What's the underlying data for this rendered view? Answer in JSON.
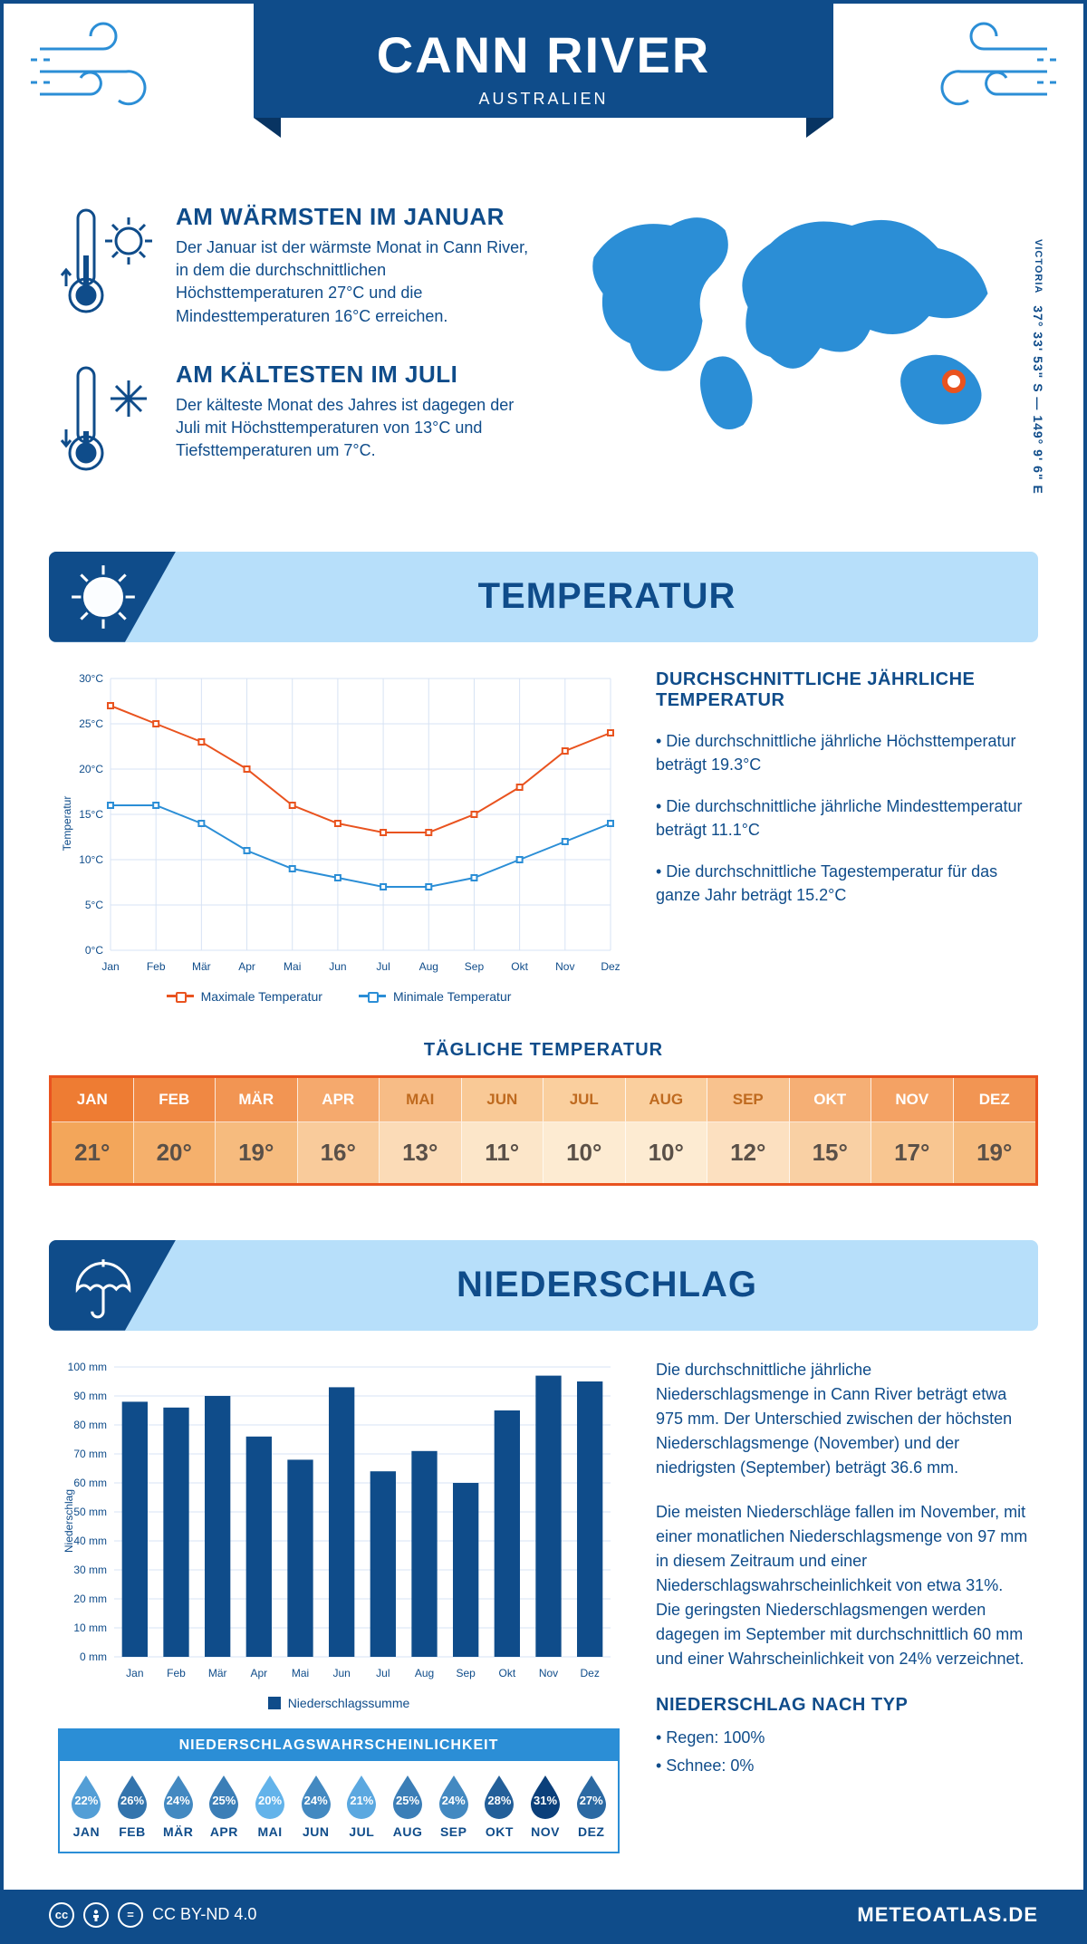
{
  "header": {
    "title": "CANN RIVER",
    "subtitle": "AUSTRALIEN"
  },
  "summary": {
    "warm": {
      "heading": "AM WÄRMSTEN IM JANUAR",
      "text": "Der Januar ist der wärmste Monat in Cann River, in dem die durchschnittlichen Höchsttemperaturen 27°C und die Mindesttemperaturen 16°C erreichen."
    },
    "cold": {
      "heading": "AM KÄLTESTEN IM JULI",
      "text": "Der kälteste Monat des Jahres ist dagegen der Juli mit Höchsttemperaturen von 13°C und Tiefsttemperaturen um 7°C."
    },
    "coords_line": "37° 33' 53\" S — 149° 9' 6\" E",
    "region": "VICTORIA"
  },
  "months": [
    "Jan",
    "Feb",
    "Mär",
    "Apr",
    "Mai",
    "Jun",
    "Jul",
    "Aug",
    "Sep",
    "Okt",
    "Nov",
    "Dez"
  ],
  "months_upper": [
    "JAN",
    "FEB",
    "MÄR",
    "APR",
    "MAI",
    "JUN",
    "JUL",
    "AUG",
    "SEP",
    "OKT",
    "NOV",
    "DEZ"
  ],
  "temperature": {
    "section_title": "TEMPERATUR",
    "chart": {
      "type": "line",
      "ylabel": "Temperatur",
      "ylim": [
        0,
        30
      ],
      "ytick_step": 5,
      "ytick_labels": [
        "0°C",
        "5°C",
        "10°C",
        "15°C",
        "20°C",
        "25°C",
        "30°C"
      ],
      "grid_color": "#d7e3f4",
      "background_color": "#ffffff",
      "series": [
        {
          "name": "Maximale Temperatur",
          "color": "#e9531f",
          "values": [
            27,
            25,
            23,
            20,
            16,
            14,
            13,
            13,
            15,
            18,
            22,
            24
          ]
        },
        {
          "name": "Minimale Temperatur",
          "color": "#2b8ed6",
          "values": [
            16,
            16,
            14,
            11,
            9,
            8,
            7,
            7,
            8,
            10,
            12,
            14
          ]
        }
      ],
      "line_width": 2,
      "marker": "square",
      "marker_size": 6,
      "label_fontsize": 12,
      "legend_fontsize": 13
    },
    "info_heading": "DURCHSCHNITTLICHE JÄHRLICHE TEMPERATUR",
    "info_points": [
      "• Die durchschnittliche jährliche Höchsttemperatur beträgt 19.3°C",
      "• Die durchschnittliche jährliche Mindesttemperatur beträgt 11.1°C",
      "• Die durchschnittliche Tagestemperatur für das ganze Jahr beträgt 15.2°C"
    ],
    "daily_title": "TÄGLICHE TEMPERATUR",
    "daily": {
      "values": [
        "21°",
        "20°",
        "19°",
        "16°",
        "13°",
        "11°",
        "10°",
        "10°",
        "12°",
        "15°",
        "17°",
        "19°"
      ],
      "header_bg_start": "#ee7c33",
      "header_bg_end": "#fbd5a6",
      "row_bg_start": "#fef0db",
      "row_bg_end": "#f3a65a",
      "border_color": "#e9531f",
      "header_text_color": "#ffffff",
      "value_text_color": "#5a5048",
      "intensity": [
        1.0,
        0.86,
        0.72,
        0.5,
        0.28,
        0.14,
        0.07,
        0.07,
        0.21,
        0.43,
        0.57,
        0.72
      ]
    }
  },
  "precip": {
    "section_title": "NIEDERSCHLAG",
    "chart": {
      "type": "bar",
      "ylabel": "Niederschlag",
      "ylim": [
        0,
        100
      ],
      "ytick_step": 10,
      "ytick_suffix": " mm",
      "bar_color": "#0f4c8a",
      "grid_color": "#d7e3f4",
      "values": [
        88,
        86,
        90,
        76,
        68,
        93,
        64,
        71,
        60,
        85,
        97,
        95
      ],
      "legend_label": "Niederschlagssumme",
      "bar_width": 0.62
    },
    "text1": "Die durchschnittliche jährliche Niederschlagsmenge in Cann River beträgt etwa 975 mm. Der Unterschied zwischen der höchsten Niederschlagsmenge (November) und der niedrigsten (September) beträgt 36.6 mm.",
    "text2": "Die meisten Niederschläge fallen im November, mit einer monatlichen Niederschlagsmenge von 97 mm in diesem Zeitraum und einer Niederschlagswahrscheinlichkeit von etwa 31%. Die geringsten Niederschlagsmengen werden dagegen im September mit durchschnittlich 60 mm und einer Wahrscheinlichkeit von 24% verzeichnet.",
    "by_type_heading": "NIEDERSCHLAG NACH TYP",
    "by_type": [
      "• Regen: 100%",
      "• Schnee: 0%"
    ],
    "prob": {
      "title": "NIEDERSCHLAGSWAHRSCHEINLICHKEIT",
      "values": [
        22,
        26,
        24,
        25,
        20,
        24,
        21,
        25,
        24,
        28,
        31,
        27
      ],
      "color_min": "#63b3ea",
      "color_max": "#0b3f7a"
    }
  },
  "footer": {
    "license": "CC BY-ND 4.0",
    "site": "METEOATLAS.DE"
  },
  "colors": {
    "primary": "#0f4c8a",
    "accent_blue": "#2b8ed6",
    "section_bg": "#b7dffa",
    "orange": "#e9531f"
  }
}
